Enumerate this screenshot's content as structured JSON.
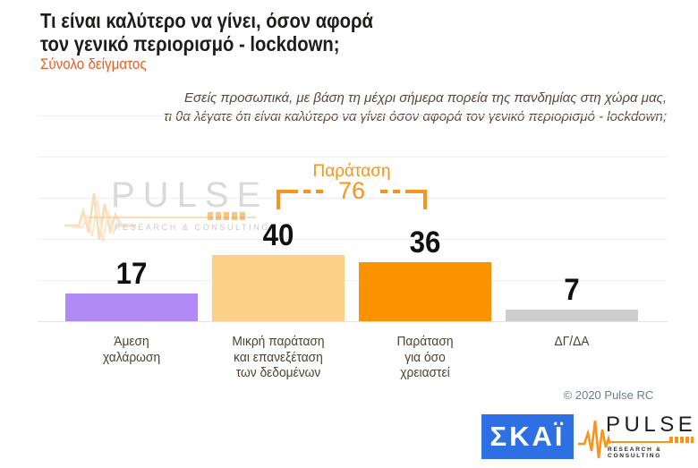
{
  "header": {
    "title": "Τι είναι καλύτερο να γίνει, όσον αφορά\nτον γενικό περιορισμό - lockdown;",
    "subtitle": "Σύνολο δείγματος"
  },
  "question": "Εσείς προσωπικά, με βάση τη μέχρι σήμερα πορεία της πανδημίας στη χώρα μας,\nτι θα λέγατε ότι είναι καλύτερο να γίνει όσον αφορά τον γενικό περιορισμό - lockdown;",
  "chart_data": {
    "type": "bar",
    "title": "Τι είναι καλύτερο να γίνει, όσον αφορά τον γενικό περιορισμό - lockdown;",
    "subtitle": "Σύνολο δείγματος",
    "categories": [
      "Άμεση\nχαλάρωση",
      "Μικρή παράταση\nκαι επανεξέταση\nτων δεδομένων",
      "Παράταση\nγια όσο\nχρειαστεί",
      "ΔΓ/ΔΑ"
    ],
    "values": [
      17,
      40,
      36,
      7
    ],
    "bar_colors": [
      "#b18bf5",
      "#fdd089",
      "#fb9300",
      "#cdcdcd"
    ],
    "data_labels": true,
    "grid": true,
    "gridline_values": [
      0,
      25,
      50,
      75,
      100,
      125
    ],
    "ylim": [
      0,
      125
    ],
    "xlabel": "",
    "ylabel": "",
    "legend": false,
    "annotation": {
      "label": "Παράταση",
      "value": 76,
      "from_category": "Μικρή παράταση και επανεξέταση των δεδομένων",
      "to_category": "Παράταση για όσο χρειαστεί",
      "color": "#f7941d"
    }
  },
  "watermark": {
    "brand": "PULSE",
    "tagline": "RESEARCH & CONSULTING"
  },
  "footer": {
    "copyright": "© 2020 Pulse RC",
    "skai_logo_text": "ΣΚΑΪ",
    "pulse_logo_text": "PULSE",
    "pulse_logo_tagline": "RESEARCH & CONSULTING"
  },
  "colors": {
    "accent_orange": "#f7941d",
    "subtitle_orange": "#ea5b22",
    "title_text": "#1d1d1b",
    "question_text": "#5a463e",
    "category_text": "#4e4035",
    "grid": "#efefef",
    "skai_blue": "#2e6fe3",
    "copyright_blue": "#64808f"
  }
}
